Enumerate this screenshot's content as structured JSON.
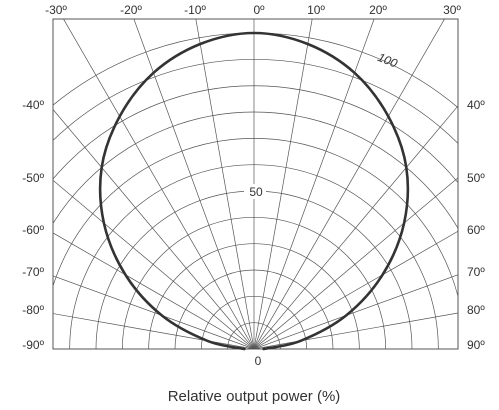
{
  "chart_data": {
    "type": "polar",
    "xlabel": "Relative output power (%)",
    "top_tick_labels": [
      "-30º",
      "-20º",
      "-10º",
      "0º",
      "10º",
      "20º",
      "30º"
    ],
    "left_tick_labels": [
      "-40º",
      "-50º",
      "-60º",
      "-70º",
      "-80º",
      "-90º"
    ],
    "right_tick_labels": [
      "40º",
      "50º",
      "60º",
      "70º",
      "80º",
      "90º"
    ],
    "radial_labels": [
      "100",
      "50",
      "0"
    ],
    "radial_range": [
      0,
      100
    ],
    "angle_range": [
      -90,
      90
    ],
    "grid": true,
    "series": [
      {
        "angles": [
          -90,
          -80,
          -70,
          -60,
          -50,
          -40,
          -30,
          -20,
          -10,
          0,
          10,
          20,
          30,
          40,
          50,
          60,
          70,
          80,
          90
        ],
        "values": [
          3,
          15,
          31,
          47,
          62,
          75,
          85,
          93,
          98,
          100,
          98,
          93,
          85,
          75,
          62,
          47,
          31,
          15,
          3
        ]
      }
    ],
    "line_color": "#333333",
    "grid_color": "#555555"
  }
}
